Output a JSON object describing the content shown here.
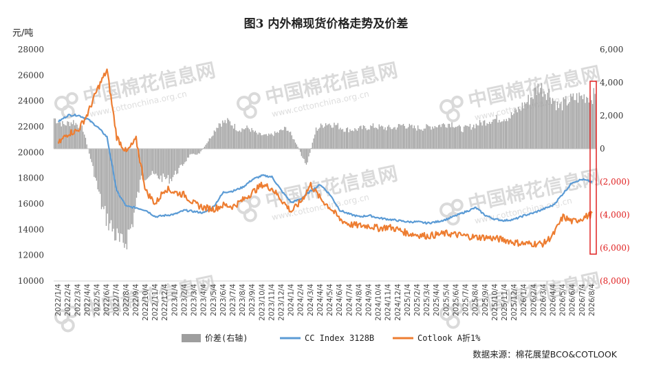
{
  "chart_data": {
    "type": "line",
    "title": "图3 内外棉现货价格走势及价差",
    "ylabel": "元/吨",
    "ylim": [
      10000,
      28000
    ],
    "yticks": [
      "28000",
      "26000",
      "24000",
      "22000",
      "20000",
      "18000",
      "16000",
      "14000",
      "12000",
      "10000"
    ],
    "y2lim": [
      -8000,
      6000
    ],
    "y2ticks": [
      "6,000",
      "4,000",
      "2,000",
      "0",
      "(2,000)",
      "(4,000)",
      "(6,000)",
      "(8,000)"
    ],
    "x_tick_labels": [
      "2022/1/4",
      "2022/2/4",
      "2022/3/4",
      "2022/4/4",
      "2022/5/4",
      "2022/6/4",
      "2022/7/4",
      "2022/8/4",
      "2022/9/4",
      "2022/10/4",
      "2022/11/4",
      "2022/12/4",
      "2023/1/4",
      "2023/2/4",
      "2023/3/4",
      "2023/4/4",
      "2023/5/4",
      "2023/6/4",
      "2023/7/4",
      "2023/8/4",
      "2023/9/4",
      "2023/10/4",
      "2023/11/4",
      "2023/12/4",
      "2024/1/4",
      "2024/2/4",
      "2024/3/4",
      "2024/4/4",
      "2024/5/4",
      "2024/6/4",
      "2024/7/4",
      "2024/8/4",
      "2024/9/4",
      "2024/10/4",
      "2024/11/4",
      "2024/12/4",
      "2025/1/4",
      "2025/2/4",
      "2025/3/4",
      "2025/4/4",
      "2025/5/4",
      "2025/6/4",
      "2025/7/4",
      "2025/8/4",
      "2025/9/4",
      "2025/10/4",
      "2025/11/4",
      "2025/12/4",
      "2026/1/4",
      "2026/2/4",
      "2026/3/4",
      "2026/4/4",
      "2026/5/4",
      "2026/6/4",
      "2026/7/4",
      "2026/8/4"
    ],
    "series": [
      {
        "name": "价差(右轴)",
        "type": "bar",
        "axis": "right",
        "color": "#9e9e9e",
        "values": [
          1900,
          1500,
          1700,
          1200,
          -1200,
          -3800,
          -5000,
          -6200,
          -4800,
          -1800,
          -1600,
          -1800,
          -1900,
          -1200,
          -400,
          -300,
          600,
          1600,
          1700,
          1200,
          1300,
          900,
          800,
          1000,
          1300,
          300,
          -1100,
          1200,
          1600,
          1500,
          1200,
          1200,
          1300,
          1400,
          1300,
          1300,
          1500,
          1300,
          1300,
          1400,
          1500,
          1600,
          1200,
          1400,
          1600,
          1800,
          1900,
          2000,
          2500,
          3100,
          3900,
          3500,
          2600,
          3000,
          3200,
          3300
        ]
      },
      {
        "name": "CC Index 3128B",
        "type": "line",
        "axis": "left",
        "color": "#5b9bd5",
        "values": [
          22400,
          22900,
          22900,
          22600,
          22000,
          21200,
          17000,
          15800,
          15700,
          15500,
          15000,
          15100,
          15200,
          15500,
          15400,
          15300,
          15800,
          16900,
          17000,
          17300,
          17900,
          18200,
          18100,
          17000,
          16100,
          16400,
          17000,
          17500,
          16700,
          15500,
          15200,
          15000,
          15100,
          14900,
          14800,
          14700,
          14600,
          14600,
          14500,
          14600,
          14800,
          15100,
          15400,
          15700,
          15100,
          14800,
          14700,
          14800,
          15100,
          15300,
          15600,
          15900,
          16800,
          17700,
          17900,
          17700
        ]
      },
      {
        "name": "Cotlook A折1%",
        "type": "line",
        "axis": "left",
        "color": "#ed7d31",
        "values": [
          20700,
          21500,
          21700,
          23000,
          24900,
          26400,
          21200,
          20000,
          21000,
          17000,
          16000,
          17200,
          16900,
          16700,
          16000,
          15700,
          15600,
          15900,
          15800,
          16300,
          16900,
          17500,
          17200,
          16300,
          15400,
          16200,
          17500,
          16400,
          15700,
          14800,
          14400,
          14300,
          14300,
          14100,
          14200,
          14000,
          13700,
          13600,
          13500,
          13600,
          13700,
          13600,
          13500,
          13400,
          13400,
          13300,
          13200,
          13000,
          12900,
          12900,
          12900,
          13600,
          15000,
          14600,
          14900,
          15200
        ]
      }
    ],
    "legend": [
      "价差(右轴)",
      "CC Index 3128B",
      "Cotlook A折1%"
    ],
    "legend_position": "bottom",
    "source": "数据来源：棉花展望BCO&COTLOOK",
    "highlight_color": "#e02020"
  },
  "watermark": {
    "text": "中国棉花信息网",
    "url": "www.cottonchina.org.cn"
  }
}
